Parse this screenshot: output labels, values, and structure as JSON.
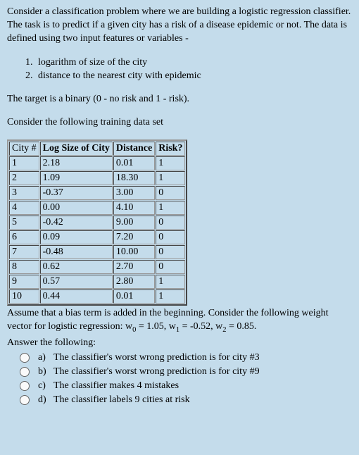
{
  "intro": "Consider a classification problem where we are building a logistic regression classifier. The task is to predict if a given city has a risk of a disease epidemic or not. The data is defined using two input features or variables -",
  "features": {
    "f1_num": "1.",
    "f1_text": "logarithm of size of the city",
    "f2_num": "2.",
    "f2_text": "distance to the nearest city with epidemic"
  },
  "target_line": "The target is a binary (0 - no risk and 1 - risk).",
  "table_intro": "Consider the following training data set",
  "table": {
    "headers": [
      "City #",
      "Log Size of City",
      "Distance",
      "Risk?"
    ],
    "rows": [
      [
        "1",
        "2.18",
        "0.01",
        "1"
      ],
      [
        "2",
        "1.09",
        "18.30",
        "1"
      ],
      [
        "3",
        "-0.37",
        "3.00",
        "0"
      ],
      [
        "4",
        "0.00",
        "4.10",
        "1"
      ],
      [
        "5",
        "-0.42",
        "9.00",
        "0"
      ],
      [
        "6",
        "0.09",
        "7.20",
        "0"
      ],
      [
        "7",
        "-0.48",
        "10.00",
        "0"
      ],
      [
        "8",
        "0.62",
        "2.70",
        "0"
      ],
      [
        "9",
        "0.57",
        "2.80",
        "1"
      ],
      [
        "10",
        "0.44",
        "0.01",
        "1"
      ]
    ]
  },
  "weights_pre": "Assume that a bias term is added in the beginning. Consider the following weight vector for logistic regression: w",
  "weights_mid1": " = 1.05, w",
  "weights_mid2": " = -0.52, w",
  "weights_end": " = 0.85.",
  "answer_prompt": "Answer the following:",
  "options": {
    "a_label": "a)",
    "a_text": "The classifier's worst wrong prediction is for city #3",
    "b_label": "b)",
    "b_text": "The classifier's worst wrong prediction is for city #9",
    "c_label": "c)",
    "c_text": "The classifier makes 4 mistakes",
    "d_label": "d)",
    "d_text": "The classifier labels 9 cities at risk"
  }
}
